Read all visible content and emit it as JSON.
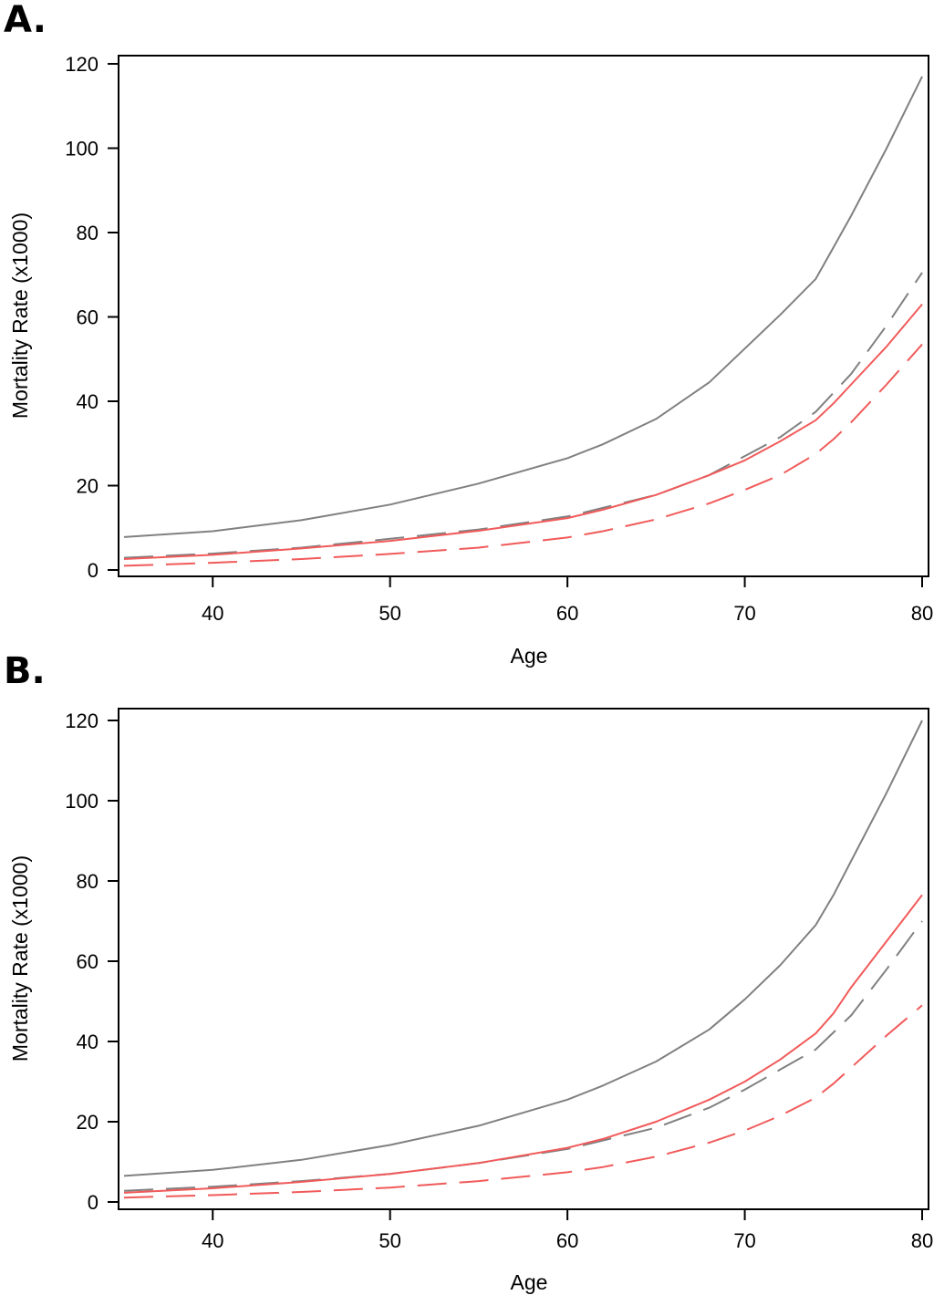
{
  "chart_data": [
    {
      "type": "line",
      "panel_label": "A.",
      "xlabel": "Age",
      "ylabel": "Mortality Rate (x1000)",
      "xlim": [
        35,
        80
      ],
      "ylim": [
        0,
        120
      ],
      "xticks": [
        40,
        50,
        60,
        70,
        80
      ],
      "yticks": [
        0,
        20,
        40,
        60,
        80,
        100,
        120
      ],
      "series": [
        {
          "name": "gray-solid",
          "color": "#808080",
          "dash": "solid",
          "x": [
            35,
            40,
            45,
            50,
            55,
            60,
            62,
            65,
            68,
            70,
            72,
            74,
            75,
            76,
            78,
            80
          ],
          "y": [
            7.8,
            9.2,
            11.8,
            15.5,
            20.5,
            26.5,
            29.8,
            35.8,
            44.5,
            52.5,
            60.5,
            69,
            76.5,
            84,
            100,
            117
          ]
        },
        {
          "name": "gray-dashed",
          "color": "#808080",
          "dash": "long",
          "x": [
            35,
            40,
            45,
            50,
            55,
            60,
            65,
            68,
            70,
            72,
            74,
            76,
            78,
            80
          ],
          "y": [
            2.9,
            3.9,
            5.3,
            7.4,
            9.6,
            12.7,
            17.8,
            22.5,
            27,
            31.5,
            37.5,
            46.5,
            58,
            70.5
          ]
        },
        {
          "name": "red-solid",
          "color": "#f15a5a",
          "dash": "solid",
          "x": [
            35,
            40,
            45,
            50,
            55,
            60,
            62,
            65,
            68,
            70,
            72,
            74,
            75,
            76,
            78,
            80
          ],
          "y": [
            2.6,
            3.6,
            5.1,
            6.9,
            9.3,
            12.3,
            14.3,
            17.8,
            22.5,
            26,
            30.5,
            35.5,
            39.5,
            44,
            53,
            63
          ]
        },
        {
          "name": "red-dashed",
          "color": "#f15a5a",
          "dash": "long",
          "x": [
            35,
            40,
            45,
            50,
            55,
            60,
            62,
            65,
            68,
            70,
            72,
            74,
            75,
            76,
            78,
            80
          ],
          "y": [
            1.0,
            1.7,
            2.6,
            3.8,
            5.3,
            7.7,
            9.2,
            12,
            15.8,
            19,
            22.5,
            27.5,
            31,
            35,
            44,
            53.5
          ]
        }
      ]
    },
    {
      "type": "line",
      "panel_label": "B.",
      "xlabel": "Age",
      "ylabel": "Mortality Rate (x1000)",
      "xlim": [
        35,
        80
      ],
      "ylim": [
        0,
        120
      ],
      "xticks": [
        40,
        50,
        60,
        70,
        80
      ],
      "yticks": [
        0,
        20,
        40,
        60,
        80,
        100,
        120
      ],
      "series": [
        {
          "name": "gray-solid",
          "color": "#808080",
          "dash": "solid",
          "x": [
            35,
            40,
            45,
            50,
            55,
            60,
            62,
            65,
            68,
            70,
            72,
            74,
            75,
            76,
            78,
            80
          ],
          "y": [
            6.5,
            8,
            10.5,
            14.2,
            19,
            25.5,
            29,
            35,
            43,
            50.5,
            59,
            69,
            76.5,
            85,
            102,
            120
          ]
        },
        {
          "name": "gray-dashed",
          "color": "#808080",
          "dash": "long",
          "x": [
            35,
            40,
            45,
            50,
            55,
            60,
            65,
            68,
            70,
            72,
            74,
            76,
            78,
            80
          ],
          "y": [
            2.8,
            3.8,
            5.2,
            7,
            9.7,
            13.2,
            18.5,
            23.5,
            28,
            33,
            38,
            46.5,
            58,
            70
          ]
        },
        {
          "name": "red-solid",
          "color": "#f15a5a",
          "dash": "solid",
          "x": [
            35,
            40,
            45,
            50,
            55,
            60,
            62,
            65,
            68,
            70,
            72,
            74,
            75,
            76,
            78,
            80
          ],
          "y": [
            2.3,
            3.4,
            5,
            7,
            9.7,
            13.5,
            15.7,
            20,
            25.5,
            30,
            35.5,
            42,
            47,
            53.5,
            65,
            76.5
          ]
        },
        {
          "name": "red-dashed",
          "color": "#f15a5a",
          "dash": "long",
          "x": [
            35,
            40,
            45,
            50,
            55,
            60,
            62,
            65,
            68,
            70,
            72,
            74,
            75,
            76,
            78,
            80
          ],
          "y": [
            1.1,
            1.7,
            2.5,
            3.6,
            5.2,
            7.4,
            8.7,
            11.3,
            14.8,
            17.8,
            21.5,
            26,
            29.5,
            33.5,
            41.5,
            49
          ]
        }
      ]
    }
  ]
}
